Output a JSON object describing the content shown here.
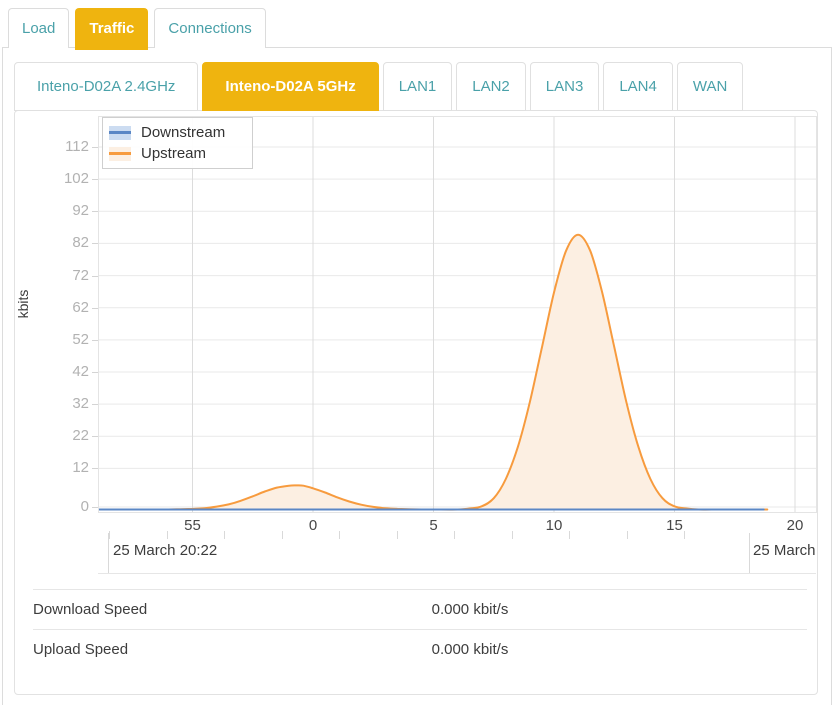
{
  "tabs": {
    "items": [
      {
        "label": "Load"
      },
      {
        "label": "Traffic"
      },
      {
        "label": "Connections"
      }
    ],
    "active": "Traffic"
  },
  "interface_tabs": {
    "items": [
      {
        "label": "Inteno-D02A 2.4GHz"
      },
      {
        "label": "Inteno-D02A 5GHz"
      },
      {
        "label": "LAN1"
      },
      {
        "label": "LAN2"
      },
      {
        "label": "LAN3"
      },
      {
        "label": "LAN4"
      },
      {
        "label": "WAN"
      }
    ],
    "active": "Inteno-D02A 5GHz"
  },
  "chart_data": {
    "type": "area",
    "title": "",
    "ylabel": "kbits",
    "grid": true,
    "legend_position": "top-left",
    "x_axis": {
      "unit": "minutes past hour",
      "tick_labels": [
        "55",
        "0",
        "5",
        "10",
        "15",
        "20"
      ],
      "tick_values": [
        -5,
        0,
        5,
        10,
        15,
        20
      ],
      "range": [
        -8.9,
        20.9
      ]
    },
    "y_axis": {
      "tick_labels": [
        "0",
        "12",
        "22",
        "32",
        "42",
        "52",
        "62",
        "72",
        "82",
        "92",
        "102",
        "112"
      ],
      "tick_values": [
        0,
        12,
        22,
        32,
        42,
        52,
        62,
        72,
        82,
        92,
        102,
        112
      ],
      "range": [
        0,
        116
      ]
    },
    "range_labels": {
      "left": "25 March 20:22",
      "right": "25 March"
    },
    "series": [
      {
        "name": "Downstream",
        "color": "#5b87c5",
        "fill": "#ccdcf1",
        "points": [
          [
            -8.9,
            0
          ],
          [
            18.7,
            0
          ]
        ]
      },
      {
        "name": "Upstream",
        "color": "#f79b3e",
        "fill": "#fcefe2",
        "points": [
          [
            -8.9,
            0
          ],
          [
            -7,
            0
          ],
          [
            -6,
            0
          ],
          [
            -5.5,
            0.1
          ],
          [
            -5,
            0.2
          ],
          [
            -4.5,
            0.4
          ],
          [
            -4,
            0.9
          ],
          [
            -3.5,
            1.6
          ],
          [
            -3,
            2.7
          ],
          [
            -2.5,
            4.1
          ],
          [
            -2,
            5.6
          ],
          [
            -1.5,
            6.8
          ],
          [
            -1,
            7.4
          ],
          [
            -0.7,
            7.5
          ],
          [
            -0.4,
            7.4
          ],
          [
            0,
            6.6
          ],
          [
            0.5,
            5.3
          ],
          [
            1,
            3.8
          ],
          [
            1.5,
            2.5
          ],
          [
            2,
            1.5
          ],
          [
            2.5,
            0.8
          ],
          [
            3,
            0.4
          ],
          [
            3.5,
            0.2
          ],
          [
            4,
            0.1
          ],
          [
            4.5,
            0
          ],
          [
            5,
            0
          ],
          [
            6,
            0
          ],
          [
            6.5,
            0.3
          ],
          [
            7,
            1
          ],
          [
            7.5,
            3.5
          ],
          [
            8,
            9.5
          ],
          [
            8.5,
            19.5
          ],
          [
            9,
            33.5
          ],
          [
            9.5,
            50.5
          ],
          [
            10,
            67.5
          ],
          [
            10.5,
            80.5
          ],
          [
            11,
            85.5
          ],
          [
            11.5,
            80.5
          ],
          [
            12,
            67.5
          ],
          [
            12.5,
            50.5
          ],
          [
            13,
            33.5
          ],
          [
            13.5,
            19.5
          ],
          [
            14,
            9.5
          ],
          [
            14.5,
            3.5
          ],
          [
            15,
            1
          ],
          [
            15.5,
            0.3
          ],
          [
            16,
            0
          ],
          [
            17,
            0
          ],
          [
            18.85,
            0
          ]
        ]
      }
    ]
  },
  "stats_table": {
    "rows": [
      {
        "label": "Download Speed",
        "value": "0.000 kbit/s"
      },
      {
        "label": "Upload Speed",
        "value": "0.000 kbit/s"
      }
    ]
  },
  "colors": {
    "accent_yellow": "#efb40f",
    "teal_link": "#4aa1a9",
    "downstream_line": "#5b87c5",
    "upstream_line": "#f79b3e",
    "gridline": "#e9e9e9"
  }
}
